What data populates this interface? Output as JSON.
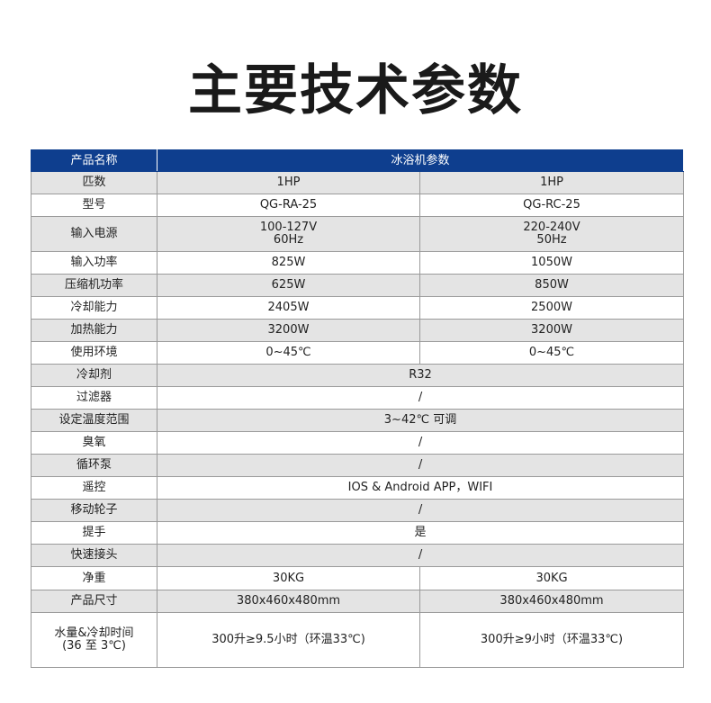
{
  "title": "主要技术参数",
  "header": {
    "label": "产品名称",
    "value": "冰浴机参数"
  },
  "rows": [
    {
      "label": "匹数",
      "values": [
        "1HP",
        "1HP"
      ]
    },
    {
      "label": "型号",
      "values": [
        "QG-RA-25",
        "QG-RC-25"
      ]
    },
    {
      "label": "输入电源",
      "values": [
        "100-127V\n60Hz",
        "220-240V\n50Hz"
      ]
    },
    {
      "label": "输入功率",
      "values": [
        "825W",
        "1050W"
      ]
    },
    {
      "label": "压缩机功率",
      "values": [
        "625W",
        "850W"
      ]
    },
    {
      "label": "冷却能力",
      "values": [
        "2405W",
        "2500W"
      ]
    },
    {
      "label": "加热能力",
      "values": [
        "3200W",
        "3200W"
      ]
    },
    {
      "label": "使用环境",
      "values": [
        "0~45℃",
        "0~45℃"
      ]
    },
    {
      "label": "冷却剂",
      "values": [
        "R32"
      ]
    },
    {
      "label": "过滤器",
      "values": [
        "/"
      ]
    },
    {
      "label": "设定温度范围",
      "values": [
        "3~42℃ 可调"
      ]
    },
    {
      "label": "臭氧",
      "values": [
        "/"
      ]
    },
    {
      "label": "循环泵",
      "values": [
        "/"
      ]
    },
    {
      "label": "遥控",
      "values": [
        "IOS & Android APP，WIFI"
      ]
    },
    {
      "label": "移动轮子",
      "values": [
        "/"
      ]
    },
    {
      "label": "提手",
      "values": [
        "是"
      ]
    },
    {
      "label": "快速接头",
      "values": [
        "/"
      ]
    },
    {
      "label": "净重",
      "values": [
        "30KG",
        "30KG"
      ]
    },
    {
      "label": "产品尺寸",
      "values": [
        "380x460x480mm",
        "380x460x480mm"
      ]
    },
    {
      "label": "水量&冷却时间\n(36 至 3℃)",
      "values": [
        "300升≥9.5小时（环温33℃)",
        "300升≥9小时（环温33℃)"
      ]
    }
  ]
}
